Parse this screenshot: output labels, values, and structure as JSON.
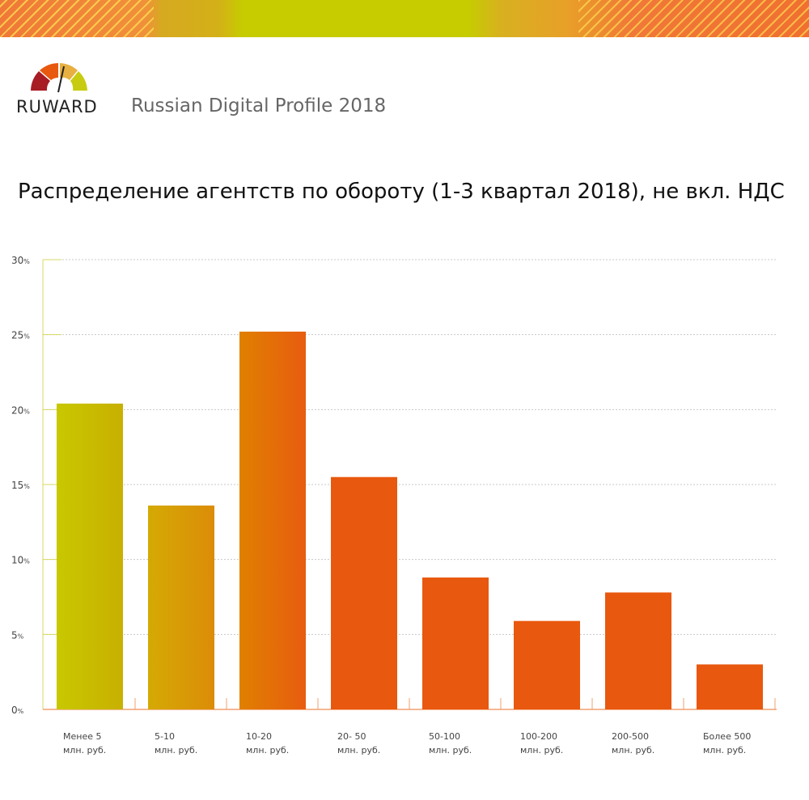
{
  "header": {
    "logo_text": "RUWARD",
    "subtitle": "Russian Digital Profile 2018"
  },
  "colors": {
    "bar_start": "#c8c800",
    "bar_end": "#e8580e"
  },
  "chart_data": {
    "type": "bar",
    "title": "Распределение агентств по обороту (1-3 квартал 2018), не вкл. НДС",
    "categories": [
      [
        "Менее 5",
        "млн. руб."
      ],
      [
        "5-10",
        "млн. руб."
      ],
      [
        "10-20",
        "млн. руб."
      ],
      [
        "20- 50",
        "млн. руб."
      ],
      [
        "50-100",
        "млн. руб."
      ],
      [
        "100-200",
        "млн. руб."
      ],
      [
        "200-500",
        "млн. руб."
      ],
      [
        "Более 500",
        "млн. руб."
      ]
    ],
    "values": [
      20.4,
      13.6,
      25.2,
      15.5,
      8.8,
      5.9,
      7.8,
      3.0
    ],
    "unit": "%",
    "ylim": [
      0,
      30
    ],
    "yticks": [
      0,
      5,
      10,
      15,
      20,
      25,
      30
    ],
    "grid": true,
    "legend": "none"
  }
}
